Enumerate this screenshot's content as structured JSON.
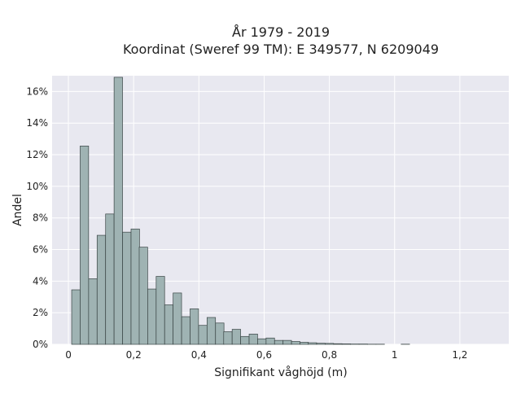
{
  "chart_data": {
    "type": "bar",
    "title_line1": "År 1979 - 2019",
    "title_line2": "Koordinat (Sweref 99 TM): E 349577, N 6209049",
    "xlabel": "Signifikant våghöjd (m)",
    "ylabel": "Andel",
    "xlim": [
      -0.05,
      1.35
    ],
    "ylim": [
      0,
      0.17
    ],
    "bin_width": 0.0259,
    "grid": true,
    "colors": {
      "bar_fill": "#9fb3b3",
      "bar_stroke": "#3a4545",
      "plot_bg": "#e8e8f0",
      "grid": "#ffffff"
    },
    "x_ticks": [
      {
        "value": 0,
        "label": "0"
      },
      {
        "value": 0.2,
        "label": "0,2"
      },
      {
        "value": 0.4,
        "label": "0,4"
      },
      {
        "value": 0.6,
        "label": "0,6"
      },
      {
        "value": 0.8,
        "label": "0,8"
      },
      {
        "value": 1.0,
        "label": "1"
      },
      {
        "value": 1.2,
        "label": "1,2"
      }
    ],
    "y_ticks": [
      {
        "value": 0,
        "label": "0%"
      },
      {
        "value": 0.02,
        "label": "2%"
      },
      {
        "value": 0.04,
        "label": "4%"
      },
      {
        "value": 0.06,
        "label": "6%"
      },
      {
        "value": 0.08,
        "label": "8%"
      },
      {
        "value": 0.1,
        "label": "10%"
      },
      {
        "value": 0.12,
        "label": "12%"
      },
      {
        "value": 0.14,
        "label": "14%"
      },
      {
        "value": 0.16,
        "label": "16%"
      }
    ],
    "bins": [
      {
        "x0": 0.01,
        "value": 0.0345
      },
      {
        "x0": 0.036,
        "value": 0.1255
      },
      {
        "x0": 0.062,
        "value": 0.0415
      },
      {
        "x0": 0.088,
        "value": 0.069
      },
      {
        "x0": 0.114,
        "value": 0.0825
      },
      {
        "x0": 0.14,
        "value": 0.169
      },
      {
        "x0": 0.166,
        "value": 0.071
      },
      {
        "x0": 0.192,
        "value": 0.073
      },
      {
        "x0": 0.217,
        "value": 0.0615
      },
      {
        "x0": 0.243,
        "value": 0.035
      },
      {
        "x0": 0.269,
        "value": 0.043
      },
      {
        "x0": 0.295,
        "value": 0.025
      },
      {
        "x0": 0.321,
        "value": 0.0325
      },
      {
        "x0": 0.347,
        "value": 0.0175
      },
      {
        "x0": 0.373,
        "value": 0.0225
      },
      {
        "x0": 0.399,
        "value": 0.012
      },
      {
        "x0": 0.425,
        "value": 0.017
      },
      {
        "x0": 0.451,
        "value": 0.0135
      },
      {
        "x0": 0.476,
        "value": 0.008
      },
      {
        "x0": 0.502,
        "value": 0.0095
      },
      {
        "x0": 0.528,
        "value": 0.005
      },
      {
        "x0": 0.554,
        "value": 0.0065
      },
      {
        "x0": 0.58,
        "value": 0.0035
      },
      {
        "x0": 0.606,
        "value": 0.004
      },
      {
        "x0": 0.632,
        "value": 0.0025
      },
      {
        "x0": 0.658,
        "value": 0.0025
      },
      {
        "x0": 0.684,
        "value": 0.0018
      },
      {
        "x0": 0.71,
        "value": 0.0013
      },
      {
        "x0": 0.735,
        "value": 0.001
      },
      {
        "x0": 0.761,
        "value": 0.0007
      },
      {
        "x0": 0.787,
        "value": 0.0006
      },
      {
        "x0": 0.813,
        "value": 0.0004
      },
      {
        "x0": 0.839,
        "value": 0.0003
      },
      {
        "x0": 0.865,
        "value": 0.0002
      },
      {
        "x0": 0.891,
        "value": 0.0002
      },
      {
        "x0": 0.917,
        "value": 0.0001
      },
      {
        "x0": 0.943,
        "value": 0.0001
      },
      {
        "x0": 1.02,
        "value": 0.0001
      }
    ]
  }
}
